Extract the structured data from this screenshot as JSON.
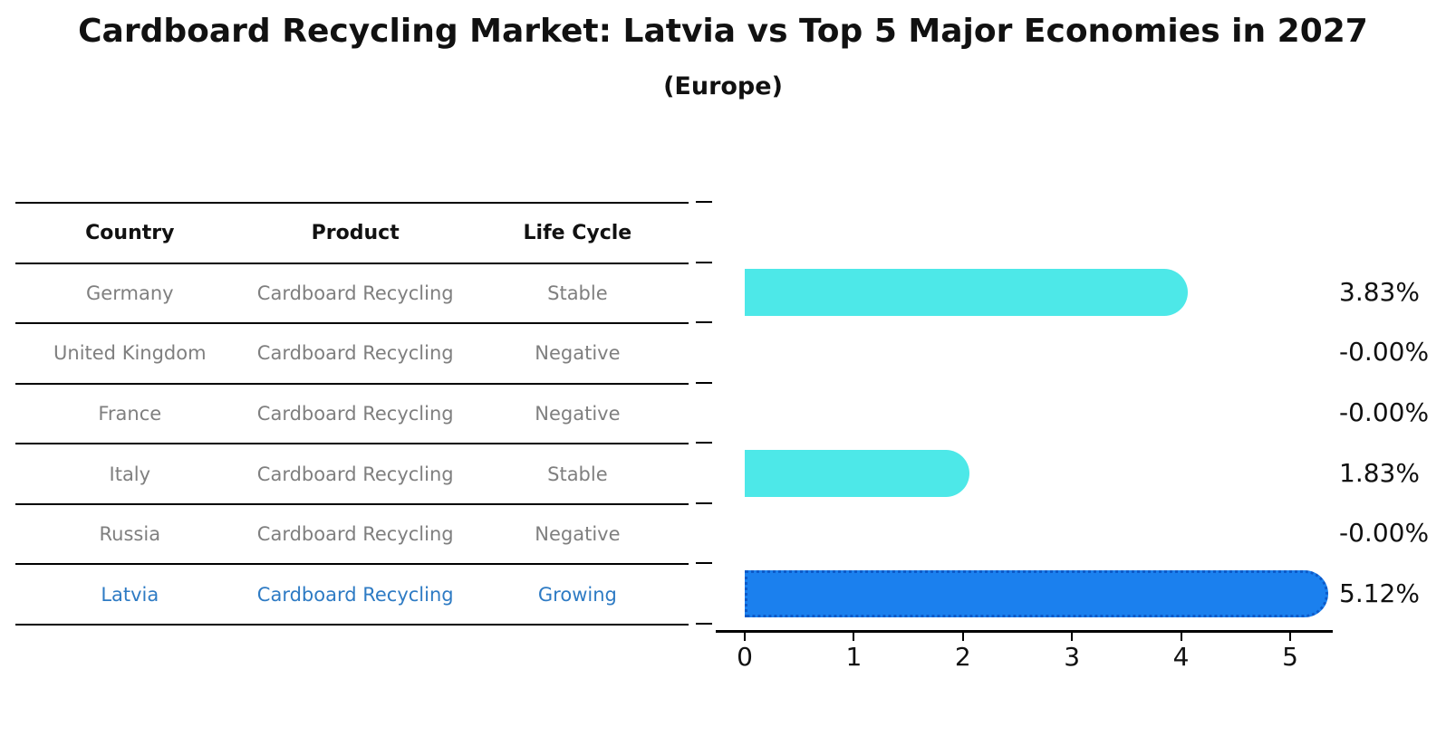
{
  "title": "Cardboard Recycling Market: Latvia vs Top 5 Major Economies in 2027",
  "subtitle": "(Europe)",
  "table": {
    "headers": {
      "country": "Country",
      "product": "Product",
      "life_cycle": "Life Cycle"
    },
    "rows": [
      {
        "country": "Germany",
        "product": "Cardboard Recycling",
        "life_cycle": "Stable"
      },
      {
        "country": "United Kingdom",
        "product": "Cardboard Recycling",
        "life_cycle": "Negative"
      },
      {
        "country": "France",
        "product": "Cardboard Recycling",
        "life_cycle": "Negative"
      },
      {
        "country": "Italy",
        "product": "Cardboard Recycling",
        "life_cycle": "Stable"
      },
      {
        "country": "Russia",
        "product": "Cardboard Recycling",
        "life_cycle": "Negative"
      },
      {
        "country": "Latvia",
        "product": "Cardboard Recycling",
        "life_cycle": "Growing"
      }
    ]
  },
  "chart_data": {
    "type": "bar",
    "orientation": "horizontal",
    "title": "Cardboard Recycling Market: Latvia vs Top 5 Major Economies in 2027 (Europe)",
    "categories": [
      "Germany",
      "United Kingdom",
      "France",
      "Italy",
      "Russia",
      "Latvia"
    ],
    "values": [
      3.83,
      -0.0,
      -0.0,
      1.83,
      -0.0,
      5.12
    ],
    "value_labels": [
      "3.83%",
      "-0.00%",
      "-0.00%",
      "1.83%",
      "-0.00%",
      "5.12%"
    ],
    "highlight_index": 5,
    "xticks": [
      "0",
      "1",
      "2",
      "3",
      "4",
      "5"
    ],
    "xlim": [
      -0.27,
      5.39
    ],
    "xlabel": "",
    "ylabel": "",
    "grid": false,
    "legend": false,
    "bar_color": "#4de8e8",
    "highlight_bar_color": "#1b80ee",
    "highlight_border_color": "#0d5ac8"
  },
  "colors": {
    "background": "#ffffff",
    "text": "#111111",
    "table_text": "#7f7f7f",
    "highlight_text": "#2e7bc4",
    "axis": "#000000"
  }
}
